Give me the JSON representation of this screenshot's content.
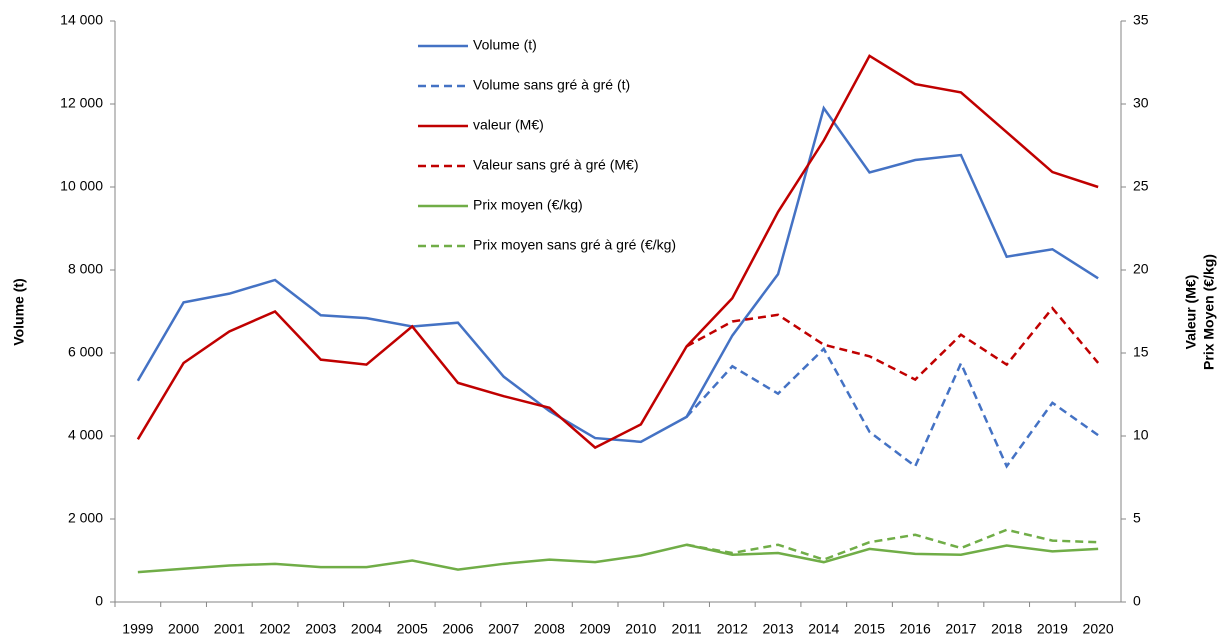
{
  "chart_data": {
    "type": "line",
    "ylabel": "Volume (t)",
    "y2label": [
      "Valeur (M€)",
      "Prix Moyen (€/kg)"
    ],
    "categories": [
      "1999",
      "2000",
      "2001",
      "2002",
      "2003",
      "2004",
      "2005",
      "2006",
      "2007",
      "2008",
      "2009",
      "2010",
      "2011",
      "2012",
      "2013",
      "2014",
      "2015",
      "2016",
      "2017",
      "2018",
      "2019",
      "2020"
    ],
    "ylim": [
      0,
      14000
    ],
    "yticks": [
      {
        "value": 0,
        "label": "0"
      },
      {
        "value": 2000,
        "label": "2 000"
      },
      {
        "value": 4000,
        "label": "4 000"
      },
      {
        "value": 6000,
        "label": "6 000"
      },
      {
        "value": 8000,
        "label": "8 000"
      },
      {
        "value": 10000,
        "label": "10 000"
      },
      {
        "value": 12000,
        "label": "12 000"
      },
      {
        "value": 14000,
        "label": "14 000"
      }
    ],
    "y2lim": [
      0,
      35
    ],
    "y2ticks": [
      0,
      5,
      10,
      15,
      20,
      25,
      30,
      35
    ],
    "grid": false,
    "legend": "top",
    "series": [
      {
        "name": "Volume (t)",
        "color": "#4472c4",
        "dash": false,
        "axis": "y",
        "values": [
          5330,
          7220,
          7430,
          7760,
          6910,
          6840,
          6640,
          6730,
          5430,
          4600,
          3950,
          3860,
          4460,
          6420,
          7900,
          11900,
          10350,
          10650,
          10770,
          8320,
          8500,
          7800
        ]
      },
      {
        "name": "Volume sans gré à gré (t)",
        "color": "#4472c4",
        "dash": true,
        "axis": "y",
        "values": [
          null,
          null,
          null,
          null,
          null,
          null,
          null,
          null,
          null,
          null,
          null,
          null,
          4460,
          5680,
          5020,
          6100,
          4100,
          3270,
          5750,
          3270,
          4800,
          4020
        ]
      },
      {
        "name": "valeur (M€)",
        "color": "#c00000",
        "dash": false,
        "axis": "y2",
        "values": [
          9.8,
          14.4,
          16.3,
          17.5,
          14.6,
          14.3,
          16.6,
          13.2,
          12.4,
          11.7,
          9.3,
          10.7,
          15.4,
          18.3,
          23.5,
          27.8,
          32.9,
          31.2,
          30.7,
          28.3,
          25.9,
          25.0
        ]
      },
      {
        "name": "Valeur sans gré à gré (M€)",
        "color": "#c00000",
        "dash": true,
        "axis": "y2",
        "values": [
          null,
          null,
          null,
          null,
          null,
          null,
          null,
          null,
          null,
          null,
          null,
          null,
          15.4,
          16.9,
          17.3,
          15.5,
          14.8,
          13.4,
          16.1,
          14.3,
          17.7,
          14.4
        ]
      },
      {
        "name": "Prix moyen (€/kg)",
        "color": "#70ad47",
        "dash": false,
        "axis": "y2",
        "values": [
          1.8,
          2.0,
          2.2,
          2.3,
          2.1,
          2.1,
          2.5,
          1.95,
          2.3,
          2.55,
          2.4,
          2.8,
          3.45,
          2.85,
          2.95,
          2.4,
          3.2,
          2.9,
          2.85,
          3.4,
          3.05,
          3.2
        ]
      },
      {
        "name": "Prix moyen sans gré à gré (€/kg)",
        "color": "#70ad47",
        "dash": true,
        "axis": "y2",
        "values": [
          null,
          null,
          null,
          null,
          null,
          null,
          null,
          null,
          null,
          null,
          null,
          null,
          3.45,
          2.95,
          3.45,
          2.55,
          3.6,
          4.05,
          3.25,
          4.35,
          3.7,
          3.6
        ]
      }
    ]
  }
}
